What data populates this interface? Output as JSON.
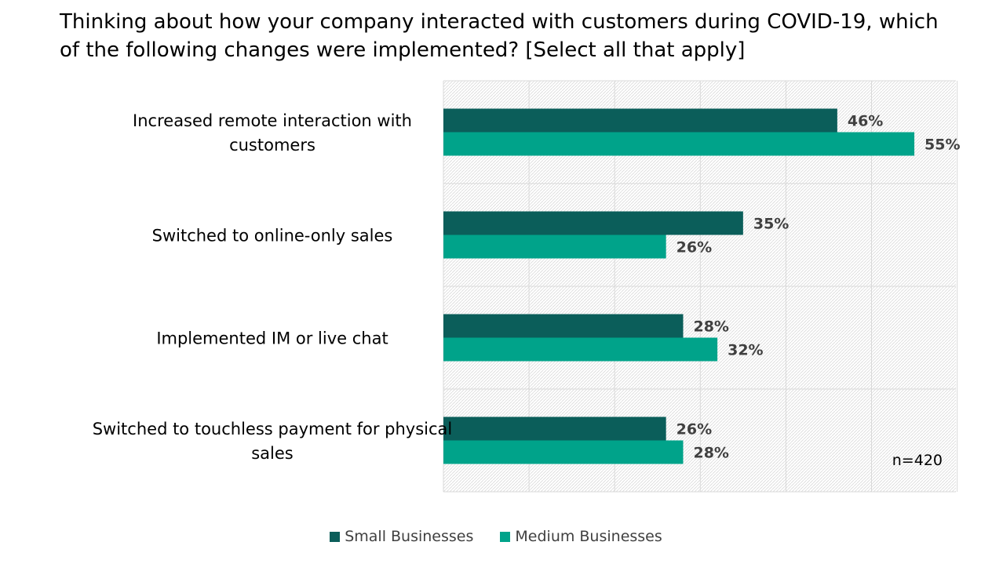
{
  "title_lines": [
    "Thinking about how your company interacted with customers during COVID-19, which",
    "of the following changes were implemented? [Select all that apply]"
  ],
  "chart_data": {
    "type": "bar",
    "orientation": "horizontal",
    "categories": [
      [
        "Increased remote interaction with",
        "customers"
      ],
      [
        "Switched to online-only sales"
      ],
      [
        "Implemented IM or live chat"
      ],
      [
        "Switched to touchless payment for physical",
        "sales"
      ]
    ],
    "series": [
      {
        "name": "Small Businesses",
        "color": "#0b5e5a",
        "values": [
          46,
          35,
          28,
          26
        ],
        "labels": [
          "46%",
          "35%",
          "28%",
          "26%"
        ]
      },
      {
        "name": "Medium Businesses",
        "color": "#00a38a",
        "values": [
          55,
          26,
          32,
          28
        ],
        "labels": [
          "55%",
          "26%",
          "32%",
          "28%"
        ]
      }
    ],
    "xlim": [
      0,
      60
    ],
    "grid": true,
    "legend_position": "bottom",
    "annotation": "n=420"
  }
}
